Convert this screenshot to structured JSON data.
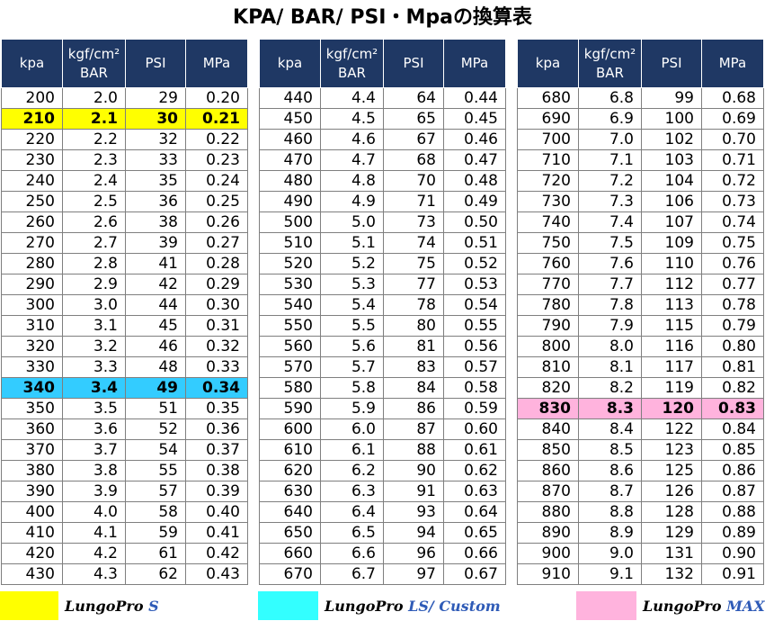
{
  "title": "KPA/ BAR/ PSI・Mpaの換算表",
  "headers": {
    "kpa": "kpa",
    "bar_line1": "kgf/cm²",
    "bar_line2": "BAR",
    "psi": "PSI",
    "mpa": "MPa"
  },
  "tables": [
    {
      "rows": [
        [
          "200",
          "2.0",
          "29",
          "0.20"
        ],
        [
          "210",
          "2.1",
          "30",
          "0.21"
        ],
        [
          "220",
          "2.2",
          "32",
          "0.22"
        ],
        [
          "230",
          "2.3",
          "33",
          "0.23"
        ],
        [
          "240",
          "2.4",
          "35",
          "0.24"
        ],
        [
          "250",
          "2.5",
          "36",
          "0.25"
        ],
        [
          "260",
          "2.6",
          "38",
          "0.26"
        ],
        [
          "270",
          "2.7",
          "39",
          "0.27"
        ],
        [
          "280",
          "2.8",
          "41",
          "0.28"
        ],
        [
          "290",
          "2.9",
          "42",
          "0.29"
        ],
        [
          "300",
          "3.0",
          "44",
          "0.30"
        ],
        [
          "310",
          "3.1",
          "45",
          "0.31"
        ],
        [
          "320",
          "3.2",
          "46",
          "0.32"
        ],
        [
          "330",
          "3.3",
          "48",
          "0.33"
        ],
        [
          "340",
          "3.4",
          "49",
          "0.34"
        ],
        [
          "350",
          "3.5",
          "51",
          "0.35"
        ],
        [
          "360",
          "3.6",
          "52",
          "0.36"
        ],
        [
          "370",
          "3.7",
          "54",
          "0.37"
        ],
        [
          "380",
          "3.8",
          "55",
          "0.38"
        ],
        [
          "390",
          "3.9",
          "57",
          "0.39"
        ],
        [
          "400",
          "4.0",
          "58",
          "0.40"
        ],
        [
          "410",
          "4.1",
          "59",
          "0.41"
        ],
        [
          "420",
          "4.2",
          "61",
          "0.42"
        ],
        [
          "430",
          "4.3",
          "62",
          "0.43"
        ]
      ],
      "highlights": {
        "1": "yellow",
        "14": "cyan"
      }
    },
    {
      "rows": [
        [
          "440",
          "4.4",
          "64",
          "0.44"
        ],
        [
          "450",
          "4.5",
          "65",
          "0.45"
        ],
        [
          "460",
          "4.6",
          "67",
          "0.46"
        ],
        [
          "470",
          "4.7",
          "68",
          "0.47"
        ],
        [
          "480",
          "4.8",
          "70",
          "0.48"
        ],
        [
          "490",
          "4.9",
          "71",
          "0.49"
        ],
        [
          "500",
          "5.0",
          "73",
          "0.50"
        ],
        [
          "510",
          "5.1",
          "74",
          "0.51"
        ],
        [
          "520",
          "5.2",
          "75",
          "0.52"
        ],
        [
          "530",
          "5.3",
          "77",
          "0.53"
        ],
        [
          "540",
          "5.4",
          "78",
          "0.54"
        ],
        [
          "550",
          "5.5",
          "80",
          "0.55"
        ],
        [
          "560",
          "5.6",
          "81",
          "0.56"
        ],
        [
          "570",
          "5.7",
          "83",
          "0.57"
        ],
        [
          "580",
          "5.8",
          "84",
          "0.58"
        ],
        [
          "590",
          "5.9",
          "86",
          "0.59"
        ],
        [
          "600",
          "6.0",
          "87",
          "0.60"
        ],
        [
          "610",
          "6.1",
          "88",
          "0.61"
        ],
        [
          "620",
          "6.2",
          "90",
          "0.62"
        ],
        [
          "630",
          "6.3",
          "91",
          "0.63"
        ],
        [
          "640",
          "6.4",
          "93",
          "0.64"
        ],
        [
          "650",
          "6.5",
          "94",
          "0.65"
        ],
        [
          "660",
          "6.6",
          "96",
          "0.66"
        ],
        [
          "670",
          "6.7",
          "97",
          "0.67"
        ]
      ],
      "highlights": {}
    },
    {
      "rows": [
        [
          "680",
          "6.8",
          "99",
          "0.68"
        ],
        [
          "690",
          "6.9",
          "100",
          "0.69"
        ],
        [
          "700",
          "7.0",
          "102",
          "0.70"
        ],
        [
          "710",
          "7.1",
          "103",
          "0.71"
        ],
        [
          "720",
          "7.2",
          "104",
          "0.72"
        ],
        [
          "730",
          "7.3",
          "106",
          "0.73"
        ],
        [
          "740",
          "7.4",
          "107",
          "0.74"
        ],
        [
          "750",
          "7.5",
          "109",
          "0.75"
        ],
        [
          "760",
          "7.6",
          "110",
          "0.76"
        ],
        [
          "770",
          "7.7",
          "112",
          "0.77"
        ],
        [
          "780",
          "7.8",
          "113",
          "0.78"
        ],
        [
          "790",
          "7.9",
          "115",
          "0.79"
        ],
        [
          "800",
          "8.0",
          "116",
          "0.80"
        ],
        [
          "810",
          "8.1",
          "117",
          "0.81"
        ],
        [
          "820",
          "8.2",
          "119",
          "0.82"
        ],
        [
          "830",
          "8.3",
          "120",
          "0.83"
        ],
        [
          "840",
          "8.4",
          "122",
          "0.84"
        ],
        [
          "850",
          "8.5",
          "123",
          "0.85"
        ],
        [
          "860",
          "8.6",
          "125",
          "0.86"
        ],
        [
          "870",
          "8.7",
          "126",
          "0.87"
        ],
        [
          "880",
          "8.8",
          "128",
          "0.88"
        ],
        [
          "890",
          "8.9",
          "129",
          "0.89"
        ],
        [
          "900",
          "9.0",
          "131",
          "0.90"
        ],
        [
          "910",
          "9.1",
          "132",
          "0.91"
        ]
      ],
      "highlights": {
        "15": "pink"
      }
    }
  ],
  "legend": [
    {
      "color": "#ffff00",
      "brand": "LungoPro",
      "model": "S"
    },
    {
      "color": "#33ffff",
      "brand": "LungoPro",
      "model": "LS/ Custom"
    },
    {
      "color": "#ffb3dd",
      "brand": "LungoPro",
      "model": "MAX"
    }
  ]
}
